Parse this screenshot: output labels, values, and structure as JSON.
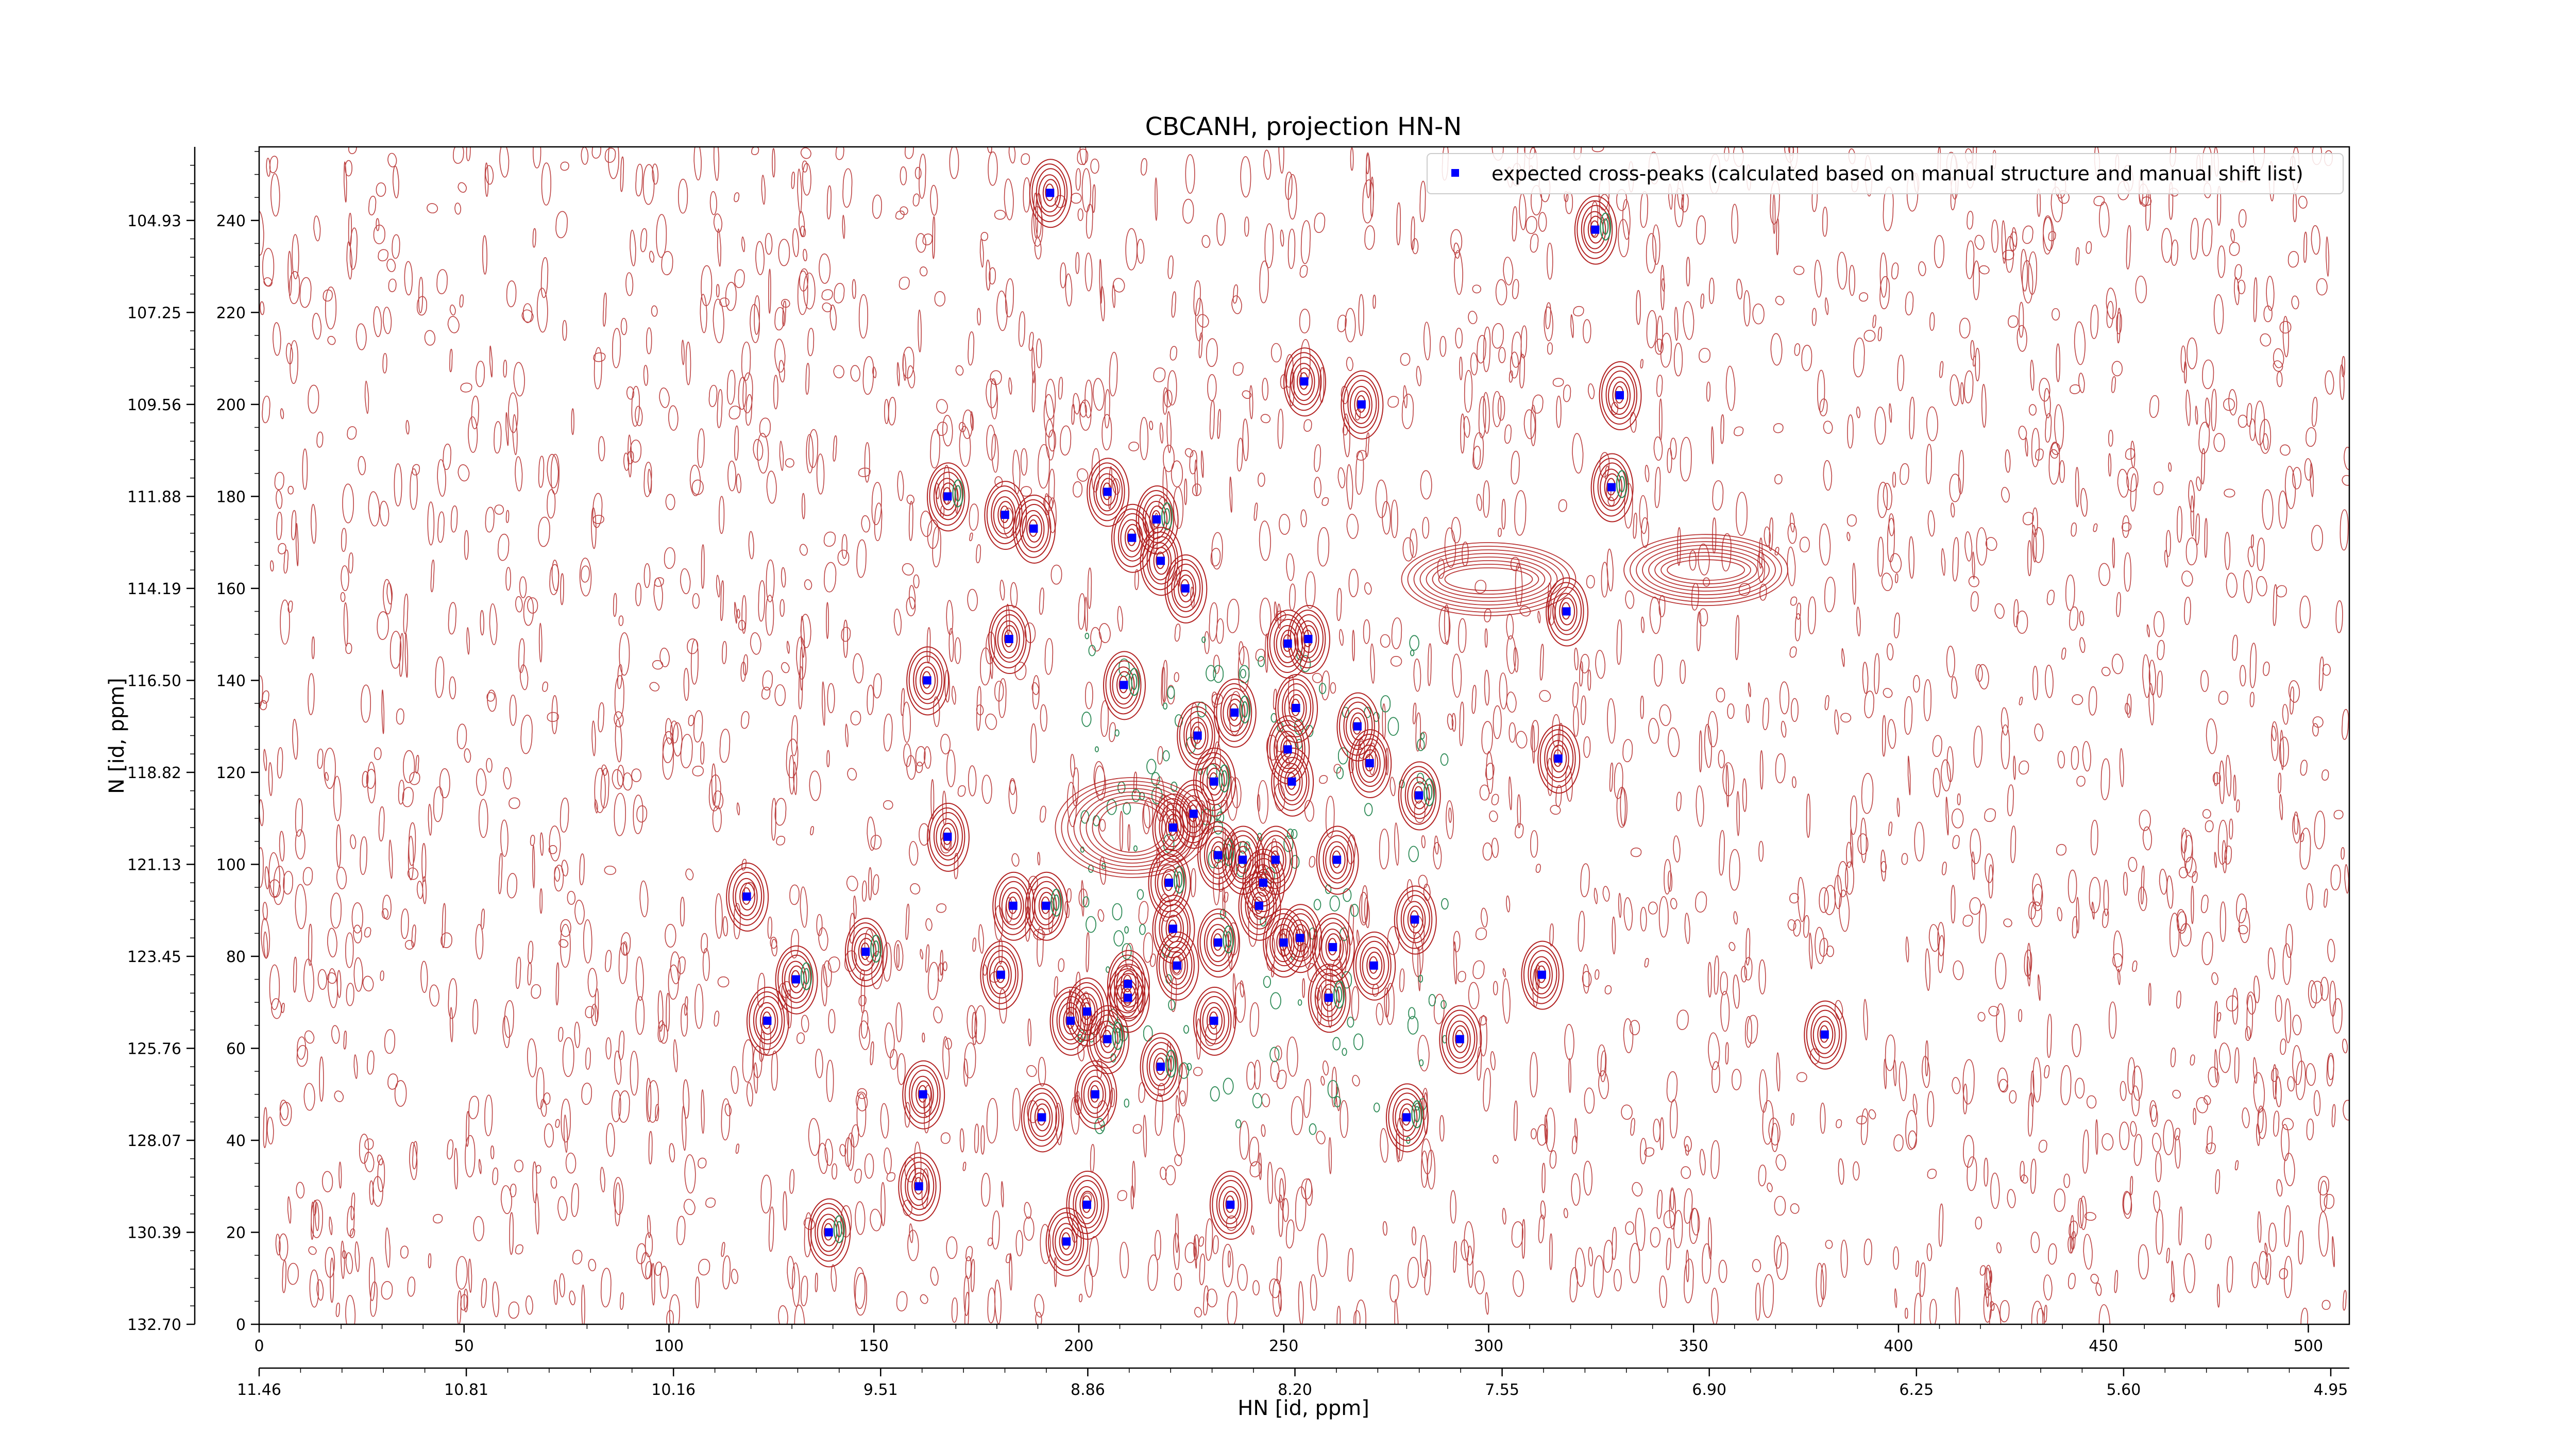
{
  "chart_data": {
    "type": "scatter",
    "title": "CBCANH, projection HN-N",
    "xlabel": "HN [id, ppm]",
    "ylabel": "N [id, ppm]",
    "xlim": [
      0,
      510
    ],
    "ylim": [
      0,
      256
    ],
    "x_ticks_index": [
      "0",
      "50",
      "100",
      "150",
      "200",
      "250",
      "300",
      "350",
      "400",
      "450",
      "500"
    ],
    "x_ticks_ppm": [
      "11.46",
      "10.81",
      "10.16",
      "9.51",
      "8.86",
      "8.20",
      "7.55",
      "6.90",
      "6.25",
      "5.60",
      "4.95"
    ],
    "y_ticks_index": [
      "0",
      "20",
      "40",
      "60",
      "80",
      "100",
      "120",
      "140",
      "160",
      "180",
      "200",
      "220",
      "240"
    ],
    "y_ticks_ppm": [
      "132.70",
      "130.39",
      "128.07",
      "125.76",
      "123.45",
      "121.13",
      "118.82",
      "116.50",
      "114.19",
      "111.88",
      "109.56",
      "107.25",
      "104.93"
    ],
    "legend": {
      "placement": "top-right",
      "label": "expected cross-peaks (calculated based on manual structure and manual shift list)"
    },
    "colors": {
      "marker": "#0000ff",
      "contour_positive": "#b22222",
      "contour_negative": "#2e8b57"
    },
    "series": [
      {
        "name": "expected cross-peaks (calculated based on manual structure and manual shift list)",
        "points": [
          {
            "x": 193,
            "y": 246
          },
          {
            "x": 326,
            "y": 238
          },
          {
            "x": 255,
            "y": 205
          },
          {
            "x": 269,
            "y": 200
          },
          {
            "x": 332,
            "y": 202
          },
          {
            "x": 168,
            "y": 180
          },
          {
            "x": 182,
            "y": 176
          },
          {
            "x": 189,
            "y": 173
          },
          {
            "x": 207,
            "y": 181
          },
          {
            "x": 219,
            "y": 175
          },
          {
            "x": 213,
            "y": 171
          },
          {
            "x": 220,
            "y": 166
          },
          {
            "x": 226,
            "y": 160
          },
          {
            "x": 330,
            "y": 182
          },
          {
            "x": 319,
            "y": 155
          },
          {
            "x": 183,
            "y": 149
          },
          {
            "x": 163,
            "y": 140
          },
          {
            "x": 211,
            "y": 139
          },
          {
            "x": 251,
            "y": 148
          },
          {
            "x": 256,
            "y": 149
          },
          {
            "x": 253,
            "y": 134
          },
          {
            "x": 238,
            "y": 133
          },
          {
            "x": 229,
            "y": 128
          },
          {
            "x": 268,
            "y": 130
          },
          {
            "x": 251,
            "y": 125
          },
          {
            "x": 233,
            "y": 118
          },
          {
            "x": 271,
            "y": 122
          },
          {
            "x": 317,
            "y": 123
          },
          {
            "x": 252,
            "y": 118
          },
          {
            "x": 283,
            "y": 115
          },
          {
            "x": 228,
            "y": 111
          },
          {
            "x": 223,
            "y": 108
          },
          {
            "x": 168,
            "y": 106
          },
          {
            "x": 234,
            "y": 102
          },
          {
            "x": 240,
            "y": 101
          },
          {
            "x": 248,
            "y": 101
          },
          {
            "x": 263,
            "y": 101
          },
          {
            "x": 222,
            "y": 96
          },
          {
            "x": 245,
            "y": 96
          },
          {
            "x": 119,
            "y": 93
          },
          {
            "x": 184,
            "y": 91
          },
          {
            "x": 192,
            "y": 91
          },
          {
            "x": 244,
            "y": 91
          },
          {
            "x": 282,
            "y": 88
          },
          {
            "x": 223,
            "y": 86
          },
          {
            "x": 234,
            "y": 83
          },
          {
            "x": 250,
            "y": 83
          },
          {
            "x": 254,
            "y": 84
          },
          {
            "x": 262,
            "y": 82
          },
          {
            "x": 148,
            "y": 81
          },
          {
            "x": 272,
            "y": 78
          },
          {
            "x": 224,
            "y": 78
          },
          {
            "x": 181,
            "y": 76
          },
          {
            "x": 131,
            "y": 75
          },
          {
            "x": 313,
            "y": 76
          },
          {
            "x": 212,
            "y": 74
          },
          {
            "x": 212,
            "y": 71
          },
          {
            "x": 261,
            "y": 71
          },
          {
            "x": 202,
            "y": 68
          },
          {
            "x": 124,
            "y": 66
          },
          {
            "x": 198,
            "y": 66
          },
          {
            "x": 207,
            "y": 62
          },
          {
            "x": 233,
            "y": 66
          },
          {
            "x": 293,
            "y": 62
          },
          {
            "x": 382,
            "y": 63
          },
          {
            "x": 220,
            "y": 56
          },
          {
            "x": 162,
            "y": 50
          },
          {
            "x": 204,
            "y": 50
          },
          {
            "x": 191,
            "y": 45
          },
          {
            "x": 280,
            "y": 45
          },
          {
            "x": 161,
            "y": 30
          },
          {
            "x": 202,
            "y": 26
          },
          {
            "x": 237,
            "y": 26
          },
          {
            "x": 139,
            "y": 20
          },
          {
            "x": 197,
            "y": 18
          }
        ]
      }
    ]
  }
}
